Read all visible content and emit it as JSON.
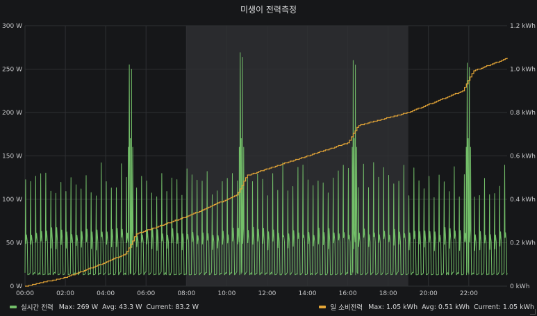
{
  "panel": {
    "title": "미생이 전력측정"
  },
  "legend": {
    "left": {
      "name": "실시간 전력",
      "max": "Max: 269 W",
      "avg": "Avg: 43.3 W",
      "current": "Current: 83.2 W",
      "color": "#73bf69"
    },
    "right": {
      "name": "일 소비전력",
      "max": "Max: 1.05 kWh",
      "avg": "Avg: 0.51 kWh",
      "current": "Current: 1.05 kWh",
      "color": "#e5a637"
    }
  },
  "chart_data": {
    "type": "line",
    "title": "미생이 전력측정",
    "x_ticks": [
      "00:00",
      "02:00",
      "04:00",
      "06:00",
      "08:00",
      "10:00",
      "12:00",
      "14:00",
      "16:00",
      "18:00",
      "20:00",
      "22:00"
    ],
    "x_range_hours": [
      0,
      23.9
    ],
    "y_left": {
      "unit": "W",
      "ticks": [
        "0 W",
        "50 W",
        "100 W",
        "150 W",
        "200 W",
        "250 W",
        "300 W"
      ],
      "range": [
        0,
        300
      ]
    },
    "y_right": {
      "unit": "kWh",
      "ticks": [
        "0 kWh",
        "0.2 kWh",
        "0.4 kWh",
        "0.6 kWh",
        "0.8 kWh",
        "1.0 kWh",
        "1.2 kWh"
      ],
      "range": [
        0,
        1.2
      ]
    },
    "highlight_region_hours": [
      8,
      19
    ],
    "grid": true,
    "series": [
      {
        "name": "실시간 전력",
        "axis": "left",
        "color": "#73bf69",
        "baseline_w": 13,
        "cycle_peak_w": 120,
        "cycles_per_hour": 4,
        "spikes": [
          {
            "hour": 5.2,
            "peak_w": 255
          },
          {
            "hour": 10.7,
            "peak_w": 269
          },
          {
            "hour": 16.3,
            "peak_w": 260
          },
          {
            "hour": 21.95,
            "peak_w": 257
          }
        ],
        "stats": {
          "max": 269,
          "avg": 43.3,
          "current": 83.2
        }
      },
      {
        "name": "일 소비전력",
        "axis": "right",
        "color": "#e5a637",
        "points": [
          {
            "hour": 0,
            "kwh": 0.0
          },
          {
            "hour": 2,
            "kwh": 0.04
          },
          {
            "hour": 4,
            "kwh": 0.11
          },
          {
            "hour": 5.0,
            "kwh": 0.15
          },
          {
            "hour": 5.5,
            "kwh": 0.24
          },
          {
            "hour": 8,
            "kwh": 0.32
          },
          {
            "hour": 10.5,
            "kwh": 0.42
          },
          {
            "hour": 11,
            "kwh": 0.51
          },
          {
            "hour": 14,
            "kwh": 0.6
          },
          {
            "hour": 16,
            "kwh": 0.66
          },
          {
            "hour": 16.5,
            "kwh": 0.74
          },
          {
            "hour": 19,
            "kwh": 0.8
          },
          {
            "hour": 21.7,
            "kwh": 0.9
          },
          {
            "hour": 22.2,
            "kwh": 0.99
          },
          {
            "hour": 23.9,
            "kwh": 1.05
          }
        ],
        "stats": {
          "max": 1.05,
          "avg": 0.51,
          "current": 1.05
        }
      }
    ]
  }
}
